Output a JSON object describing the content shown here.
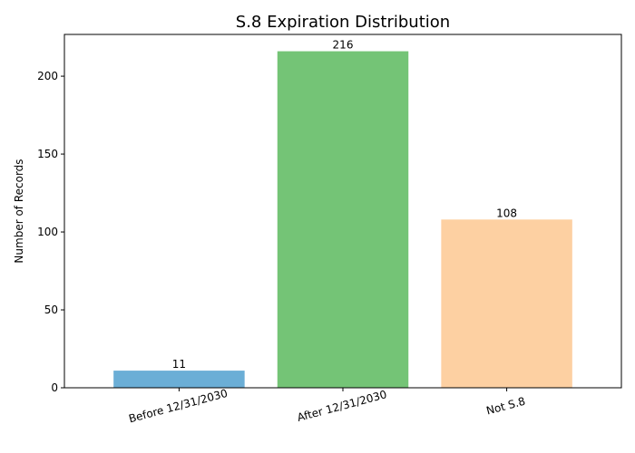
{
  "chart_data": {
    "type": "bar",
    "title": "S.8 Expiration Distribution",
    "xlabel": "",
    "ylabel": "Number of Records",
    "categories": [
      "Before 12/31/2030",
      "After 12/31/2030",
      "Not S.8"
    ],
    "values": [
      11,
      216,
      108
    ],
    "value_labels": [
      "11",
      "216",
      "108"
    ],
    "colors": [
      "#6baed6",
      "#74c476",
      "#fdd0a2"
    ],
    "ylim": [
      0,
      226.8
    ],
    "yticks": [
      0,
      50,
      100,
      150,
      200
    ],
    "ytick_labels": [
      "0",
      "50",
      "100",
      "150",
      "200"
    ],
    "grid": false,
    "legend": "none"
  }
}
